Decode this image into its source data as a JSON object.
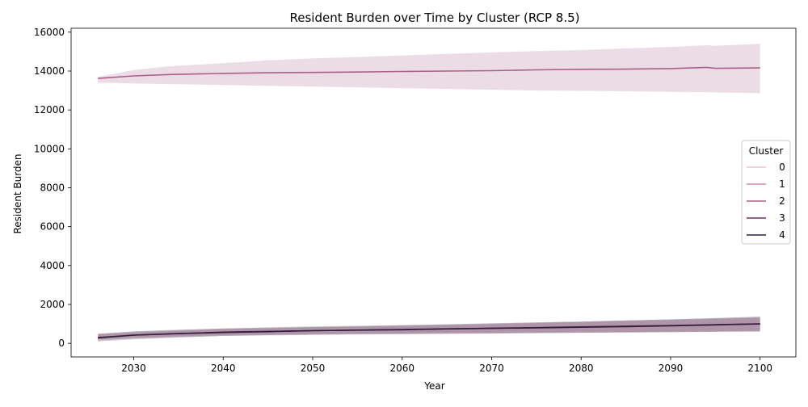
{
  "chart_data": {
    "type": "line",
    "title": "Resident Burden over Time by Cluster (RCP 8.5)",
    "xlabel": "Year",
    "ylabel": "Resident Burden",
    "xlim": [
      2023,
      2104
    ],
    "ylim": [
      -700,
      16200
    ],
    "x_ticks": [
      2030,
      2040,
      2050,
      2060,
      2070,
      2080,
      2090,
      2100
    ],
    "y_ticks": [
      0,
      2000,
      4000,
      6000,
      8000,
      10000,
      12000,
      14000,
      16000
    ],
    "grid": false,
    "legend": {
      "title": "Cluster",
      "placement": "center-right"
    },
    "series": [
      {
        "name": "0",
        "color": "#ebc6ca",
        "x": [
          2026,
          2030,
          2040,
          2050,
          2060,
          2070,
          2080,
          2090,
          2100
        ],
        "y": [
          300,
          420,
          580,
          650,
          710,
          780,
          850,
          920,
          1000
        ],
        "lower": [
          200,
          300,
          420,
          470,
          510,
          540,
          580,
          600,
          640
        ],
        "upper": [
          450,
          560,
          720,
          820,
          900,
          980,
          1100,
          1200,
          1300
        ]
      },
      {
        "name": "1",
        "color": "#cd8fad",
        "x": [
          2026,
          2030,
          2040,
          2050,
          2060,
          2070,
          2080,
          2090,
          2100
        ],
        "y": [
          300,
          420,
          580,
          650,
          710,
          780,
          850,
          920,
          1000
        ],
        "lower": [
          200,
          300,
          420,
          470,
          510,
          540,
          580,
          600,
          640
        ],
        "upper": [
          450,
          560,
          720,
          820,
          900,
          980,
          1100,
          1200,
          1300
        ]
      },
      {
        "name": "2",
        "color": "#aa6189",
        "x": [
          2026,
          2030,
          2034,
          2040,
          2045,
          2050,
          2055,
          2060,
          2065,
          2070,
          2075,
          2080,
          2085,
          2090,
          2094,
          2095,
          2100
        ],
        "y": [
          13620,
          13750,
          13820,
          13880,
          13910,
          13930,
          13950,
          13980,
          14000,
          14020,
          14060,
          14090,
          14100,
          14130,
          14190,
          14140,
          14160
        ],
        "lower": [
          13400,
          13360,
          13330,
          13280,
          13240,
          13200,
          13160,
          13120,
          13080,
          13040,
          13000,
          12980,
          12960,
          12930,
          12920,
          12900,
          12860
        ],
        "upper": [
          13700,
          14050,
          14250,
          14400,
          14550,
          14650,
          14720,
          14800,
          14880,
          14960,
          15030,
          15080,
          15160,
          15240,
          15330,
          15300,
          15400
        ]
      },
      {
        "name": "3",
        "color": "#6a3160",
        "x": [
          2026,
          2030,
          2040,
          2050,
          2060,
          2070,
          2080,
          2090,
          2100
        ],
        "y": [
          300,
          420,
          580,
          650,
          710,
          780,
          850,
          920,
          1000
        ],
        "lower": [
          150,
          250,
          380,
          430,
          470,
          500,
          540,
          570,
          600
        ],
        "upper": [
          480,
          600,
          760,
          840,
          920,
          1020,
          1120,
          1230,
          1350
        ]
      },
      {
        "name": "4",
        "color": "#2d1e3e",
        "x": [
          2026,
          2030,
          2035,
          2040,
          2045,
          2050,
          2055,
          2060,
          2065,
          2070,
          2075,
          2080,
          2085,
          2090,
          2095,
          2100
        ],
        "y": [
          280,
          420,
          500,
          560,
          600,
          650,
          680,
          700,
          740,
          770,
          800,
          830,
          860,
          900,
          950,
          1000
        ],
        "lower": [
          100,
          200,
          300,
          380,
          420,
          450,
          470,
          480,
          500,
          510,
          530,
          540,
          560,
          580,
          600,
          620
        ],
        "upper": [
          500,
          620,
          700,
          760,
          820,
          870,
          900,
          940,
          980,
          1030,
          1080,
          1120,
          1180,
          1230,
          1300,
          1380
        ]
      }
    ]
  }
}
